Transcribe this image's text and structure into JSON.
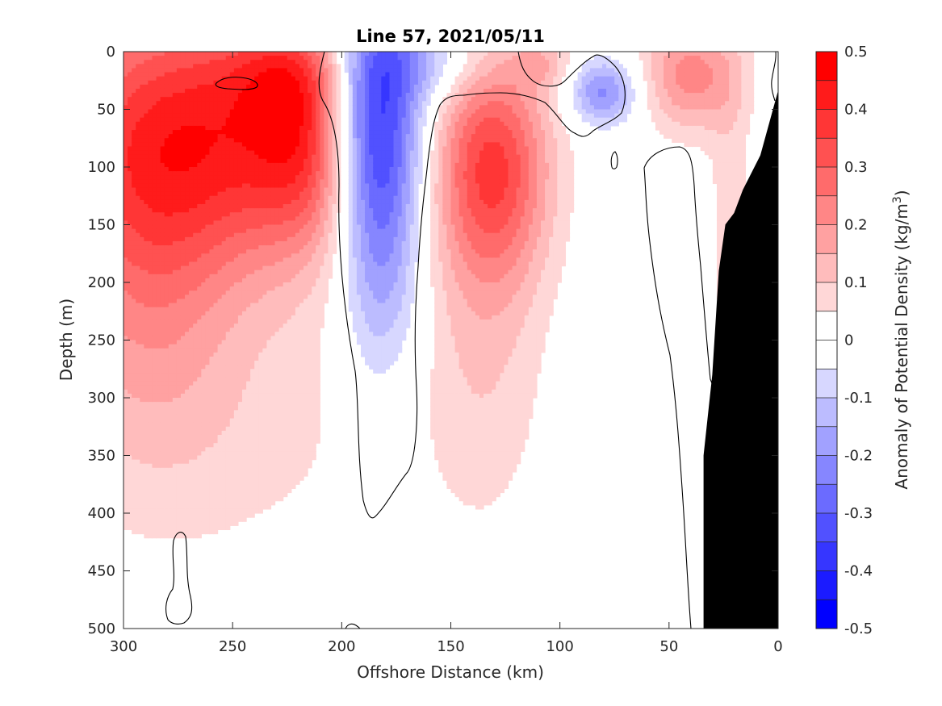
{
  "chart_data": {
    "type": "heatmap",
    "title": "Line 57, 2021/05/11",
    "xlabel": "Offshore Distance (km)",
    "ylabel": "Depth (m)",
    "xlim": [
      300,
      0
    ],
    "ylim": [
      500,
      0
    ],
    "x_ticks": [
      300,
      250,
      200,
      150,
      100,
      50,
      0
    ],
    "y_ticks": [
      0,
      50,
      100,
      150,
      200,
      250,
      300,
      350,
      400,
      450,
      500
    ],
    "colorbar": {
      "label": "Anomaly of Potential Density (kg/m",
      "label_sup": "3",
      "label_close": ")",
      "range": [
        -0.5,
        0.5
      ],
      "levels": [
        -0.5,
        -0.45,
        -0.4,
        -0.35,
        -0.3,
        -0.25,
        -0.2,
        -0.15,
        -0.1,
        -0.05,
        0,
        0.05,
        0.1,
        0.15,
        0.2,
        0.25,
        0.3,
        0.35,
        0.4,
        0.45,
        0.5
      ],
      "tick_values": [
        0.5,
        0.4,
        0.3,
        0.2,
        0.1,
        0,
        -0.1,
        -0.2,
        -0.3,
        -0.4,
        -0.5
      ],
      "tick_labels": [
        "0.5",
        "0.4",
        "0.3",
        "0.2",
        "0.1",
        "0",
        "-0.1",
        "-0.2",
        "-0.3",
        "-0.4",
        "-0.5"
      ]
    },
    "colors": {
      "positive_max": "#ff0000",
      "negative_max": "#0000ff",
      "zero": "#ffffff",
      "bathymetry": "#000000",
      "contour": "#000000"
    },
    "features": [
      {
        "name": "offshore dense core",
        "x_center": 255,
        "depth_center": 70,
        "anomaly": 0.35
      },
      {
        "name": "light anomaly core",
        "x_center": 185,
        "depth_center": 40,
        "anomaly": -0.45
      },
      {
        "name": "mid-section dense eddy",
        "x_center": 130,
        "depth_center": 90,
        "anomaly": 0.3
      },
      {
        "name": "shallow light eddy",
        "x_center": 80,
        "depth_center": 35,
        "anomaly": -0.2
      },
      {
        "name": "nearshore surface dense",
        "x_center": 40,
        "depth_center": 20,
        "anomaly": 0.2
      }
    ],
    "bathymetry": {
      "x": [
        0,
        0,
        8,
        16,
        20,
        24,
        27,
        30,
        34,
        34,
        0
      ],
      "depth": [
        500,
        35,
        90,
        120,
        140,
        150,
        190,
        280,
        350,
        500,
        500
      ]
    }
  }
}
